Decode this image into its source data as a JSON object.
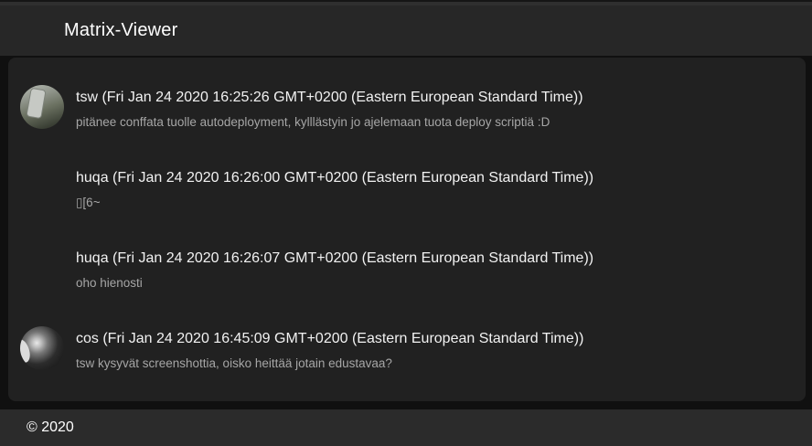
{
  "app": {
    "title": "Matrix-Viewer"
  },
  "messages": [
    {
      "author": "tsw",
      "header": "tsw (Fri Jan 24 2020 16:25:26 GMT+0200 (Eastern European Standard Time))",
      "body": "pitänee conffata tuolle autodeployment, kylllästyin jo ajelemaan tuota deploy scriptiä :D",
      "avatar": "photo-person-holding-phone"
    },
    {
      "author": "huqa",
      "header": "huqa (Fri Jan 24 2020 16:26:00 GMT+0200 (Eastern European Standard Time))",
      "body": "▯[6~",
      "avatar": null
    },
    {
      "author": "huqa",
      "header": "huqa (Fri Jan 24 2020 16:26:07 GMT+0200 (Eastern European Standard Time))",
      "body": "oho hienosti",
      "avatar": null
    },
    {
      "author": "cos",
      "header": "cos (Fri Jan 24 2020 16:45:09 GMT+0200 (Eastern European Standard Time))",
      "body": "tsw kysyvät screenshottia, oisko heittää jotain edustavaa?",
      "avatar": "photo-person-profile-bw"
    }
  ],
  "footer": {
    "copyright": "© 2020"
  },
  "colors": {
    "header_bar": "#272727",
    "footer_bar": "#2b2b2b",
    "page_background": "#101010",
    "card_background": "#212121",
    "text_primary": "#f2f2f2",
    "text_secondary": "#a6a6a6"
  }
}
